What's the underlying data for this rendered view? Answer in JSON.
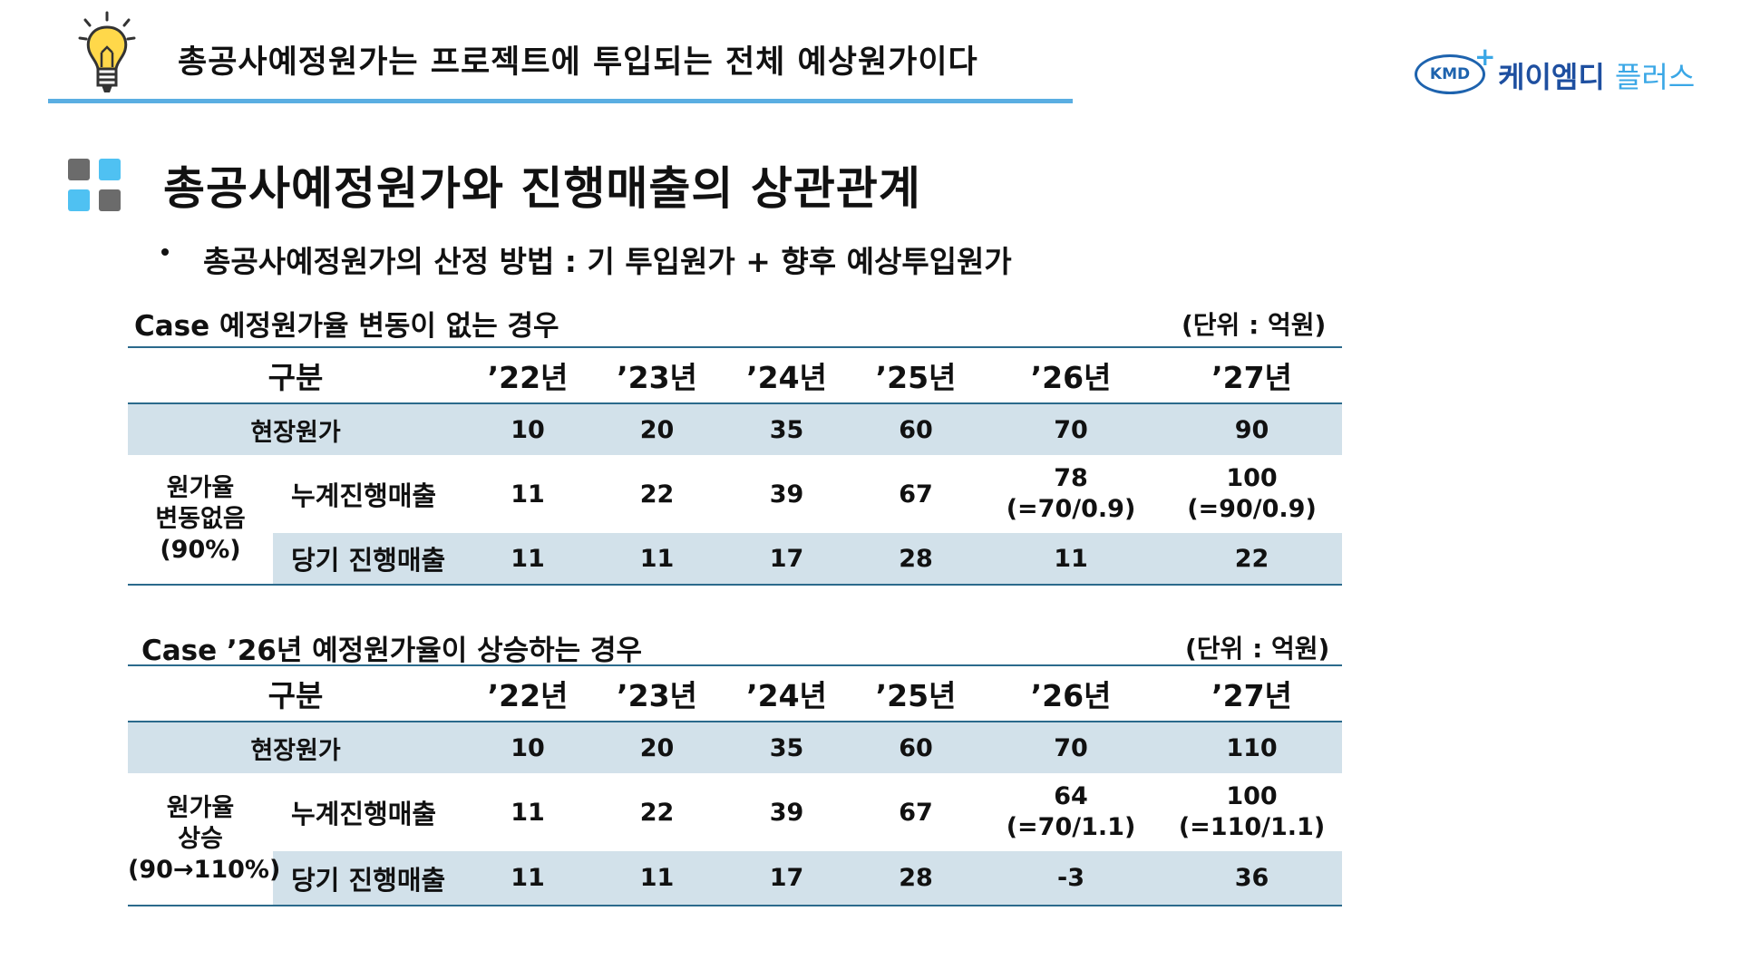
{
  "header": {
    "title": "총공사예정원가는 프로젝트에 투입되는 전체 예상원가이다",
    "logo_badge": "KMD",
    "logo_name": "케이엠디",
    "logo_sub": "플러스"
  },
  "section": {
    "title": "총공사예정원가와 진행매출의 상관관계",
    "bullet": "총공사예정원가의 산정 방법 : 기 투입원가 + 향후 예상투입원가"
  },
  "colors": {
    "accent_rule": "#5aaee2",
    "table_shade": "#d2e1ea",
    "table_rule": "#2b6a8c",
    "logo_blue": "#1e4fa0",
    "logo_light": "#3aa7e6"
  },
  "table1": {
    "case_title": "Case 예정원가율 변동이 없는 경우",
    "unit": "(단위 : 억원)",
    "headers": [
      "구분",
      "’22년",
      "’23년",
      "’24년",
      "’25년",
      "’26년",
      "’27년"
    ],
    "row_site": {
      "label": "현장원가",
      "values": [
        "10",
        "20",
        "35",
        "60",
        "70",
        "90"
      ]
    },
    "group_label": [
      "원가율",
      "변동없음",
      "(90%)"
    ],
    "row_cum": {
      "label": "누계진행매출",
      "values": [
        "11",
        "22",
        "39",
        "67"
      ],
      "v26": [
        "78",
        "(=70/0.9)"
      ],
      "v27": [
        "100",
        "(=90/0.9)"
      ]
    },
    "row_cur": {
      "label": "당기 진행매출",
      "values": [
        "11",
        "11",
        "17",
        "28",
        "11",
        "22"
      ]
    }
  },
  "table2": {
    "case_title": "Case ’26년 예정원가율이 상승하는 경우",
    "unit": "(단위 : 억원)",
    "headers": [
      "구분",
      "’22년",
      "’23년",
      "’24년",
      "’25년",
      "’26년",
      "’27년"
    ],
    "row_site": {
      "label": "현장원가",
      "values": [
        "10",
        "20",
        "35",
        "60",
        "70",
        "110"
      ]
    },
    "group_label": [
      "원가율",
      "상승",
      "(90→110%)"
    ],
    "row_cum": {
      "label": "누계진행매출",
      "values": [
        "11",
        "22",
        "39",
        "67"
      ],
      "v26": [
        "64",
        "(=70/1.1)"
      ],
      "v27": [
        "100",
        "(=110/1.1)"
      ]
    },
    "row_cur": {
      "label": "당기 진행매출",
      "values": [
        "11",
        "11",
        "17",
        "28",
        "-3",
        "36"
      ]
    }
  }
}
